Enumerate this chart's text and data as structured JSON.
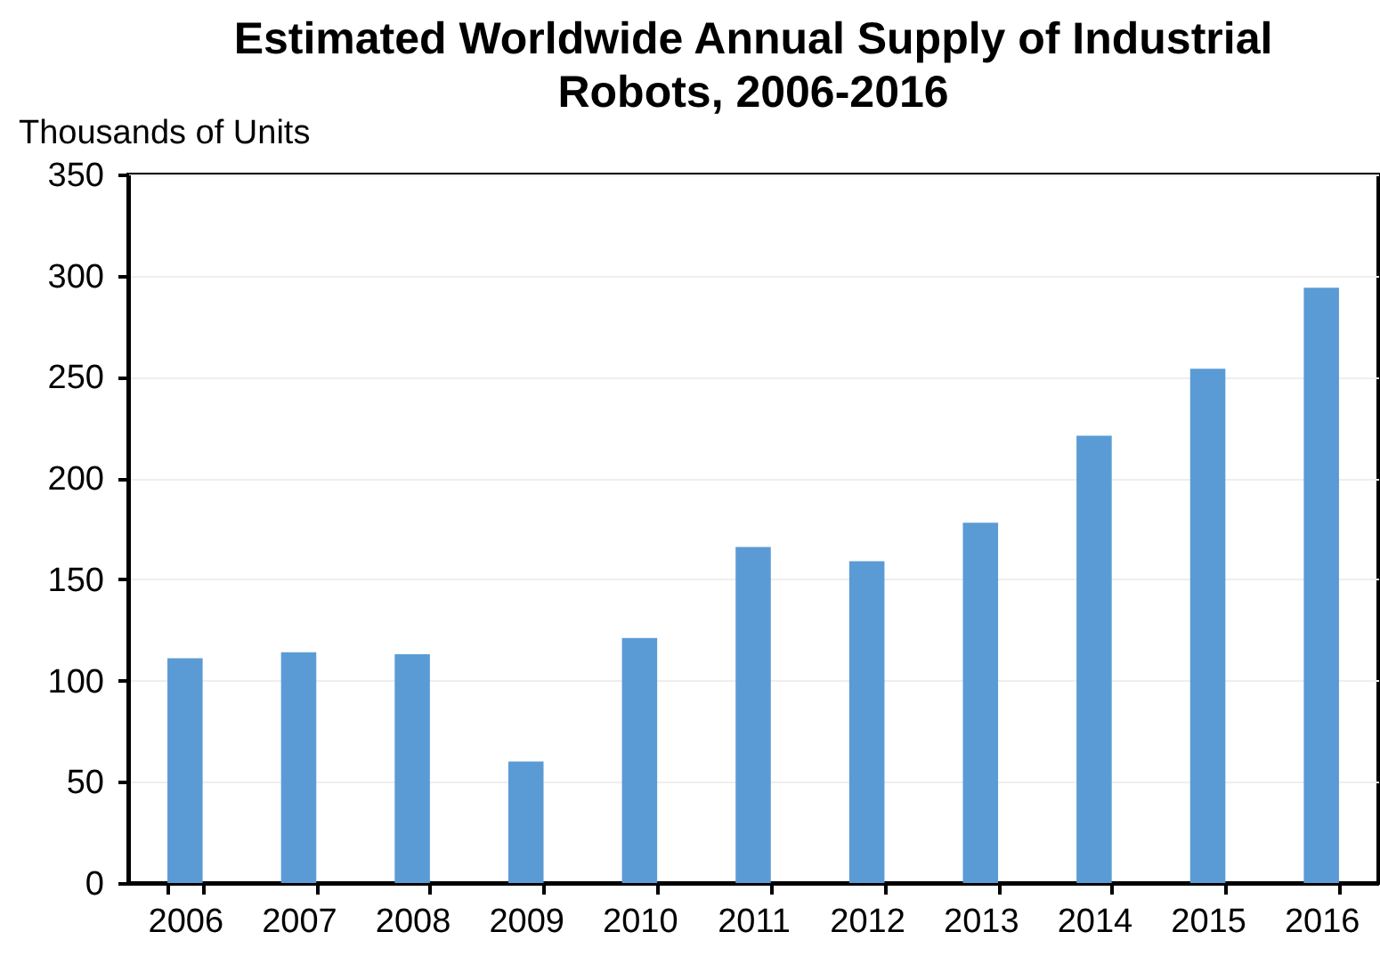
{
  "chart_data": {
    "type": "bar",
    "title": "Estimated Worldwide Annual Supply of Industrial Robots, 2006-2016",
    "ylabel": "Thousands of Units",
    "categories": [
      "2006",
      "2007",
      "2008",
      "2009",
      "2010",
      "2011",
      "2012",
      "2013",
      "2014",
      "2015",
      "2016"
    ],
    "values": [
      111,
      114,
      113,
      60,
      121,
      166,
      159,
      178,
      221,
      254,
      294
    ],
    "color": "#5b9bd5",
    "ylim": [
      0,
      350
    ],
    "yticks": [
      0,
      50,
      100,
      150,
      200,
      250,
      300,
      350
    ],
    "grid": "y"
  }
}
